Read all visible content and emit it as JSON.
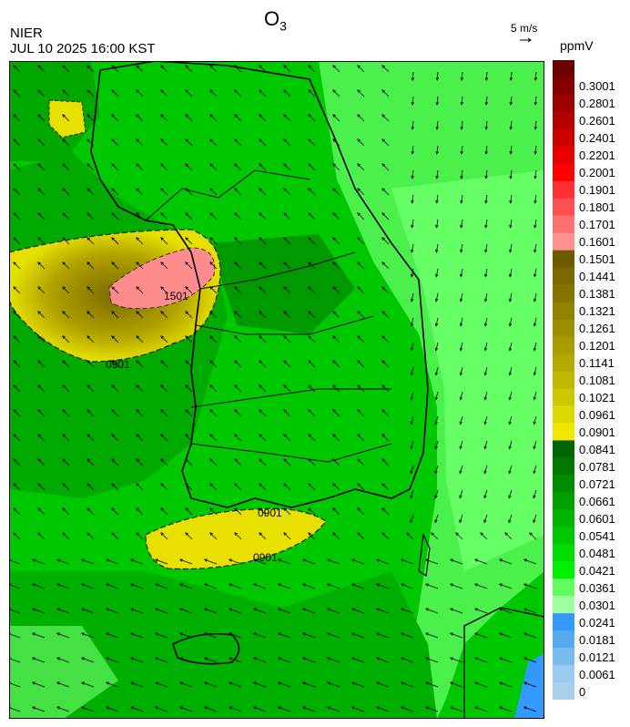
{
  "header": {
    "title_main": "O",
    "title_sub": "3",
    "agency": "NIER",
    "datetime": "JUL 10 2025 16:00 KST",
    "wind_scale_label": "5 m/s",
    "units": "ppmV"
  },
  "map": {
    "contour_labels": [
      "0901",
      "1501",
      "0901",
      "0901"
    ]
  },
  "legend": {
    "bins": [
      {
        "label": "",
        "color": "#6b0000"
      },
      {
        "label": "0.3001",
        "color": "#840000"
      },
      {
        "label": "0.2801",
        "color": "#9c0000"
      },
      {
        "label": "0.2601",
        "color": "#b40000"
      },
      {
        "label": "0.2401",
        "color": "#cd0000"
      },
      {
        "label": "0.2201",
        "color": "#e60000"
      },
      {
        "label": "0.2001",
        "color": "#ff0000"
      },
      {
        "label": "0.1901",
        "color": "#ff3030"
      },
      {
        "label": "0.1801",
        "color": "#ff5050"
      },
      {
        "label": "0.1701",
        "color": "#ff7070"
      },
      {
        "label": "0.1601",
        "color": "#ff9090"
      },
      {
        "label": "0.1501",
        "color": "#6e5a00"
      },
      {
        "label": "0.1441",
        "color": "#7a6800"
      },
      {
        "label": "0.1381",
        "color": "#857500"
      },
      {
        "label": "0.1321",
        "color": "#918200"
      },
      {
        "label": "0.1261",
        "color": "#9c8f00"
      },
      {
        "label": "0.1201",
        "color": "#a89c00"
      },
      {
        "label": "0.1141",
        "color": "#b4a900"
      },
      {
        "label": "0.1081",
        "color": "#c0b800"
      },
      {
        "label": "0.1021",
        "color": "#ccc800"
      },
      {
        "label": "0.0961",
        "color": "#dcd800"
      },
      {
        "label": "0.0901",
        "color": "#f0e800"
      },
      {
        "label": "0.0841",
        "color": "#006400"
      },
      {
        "label": "0.0781",
        "color": "#007800"
      },
      {
        "label": "0.0721",
        "color": "#008c00"
      },
      {
        "label": "0.0661",
        "color": "#00a000"
      },
      {
        "label": "0.0601",
        "color": "#00b400"
      },
      {
        "label": "0.0541",
        "color": "#00c800"
      },
      {
        "label": "0.0481",
        "color": "#00dc00"
      },
      {
        "label": "0.0421",
        "color": "#00f000"
      },
      {
        "label": "0.0361",
        "color": "#60ff60"
      },
      {
        "label": "0.0301",
        "color": "#a0ffa0"
      },
      {
        "label": "0.0241",
        "color": "#3399ff"
      },
      {
        "label": "0.0181",
        "color": "#55aaee"
      },
      {
        "label": "0.0121",
        "color": "#77bbee"
      },
      {
        "label": "0.0061",
        "color": "#99ccee"
      },
      {
        "label": "0",
        "color": "#a8d0ea"
      }
    ]
  }
}
